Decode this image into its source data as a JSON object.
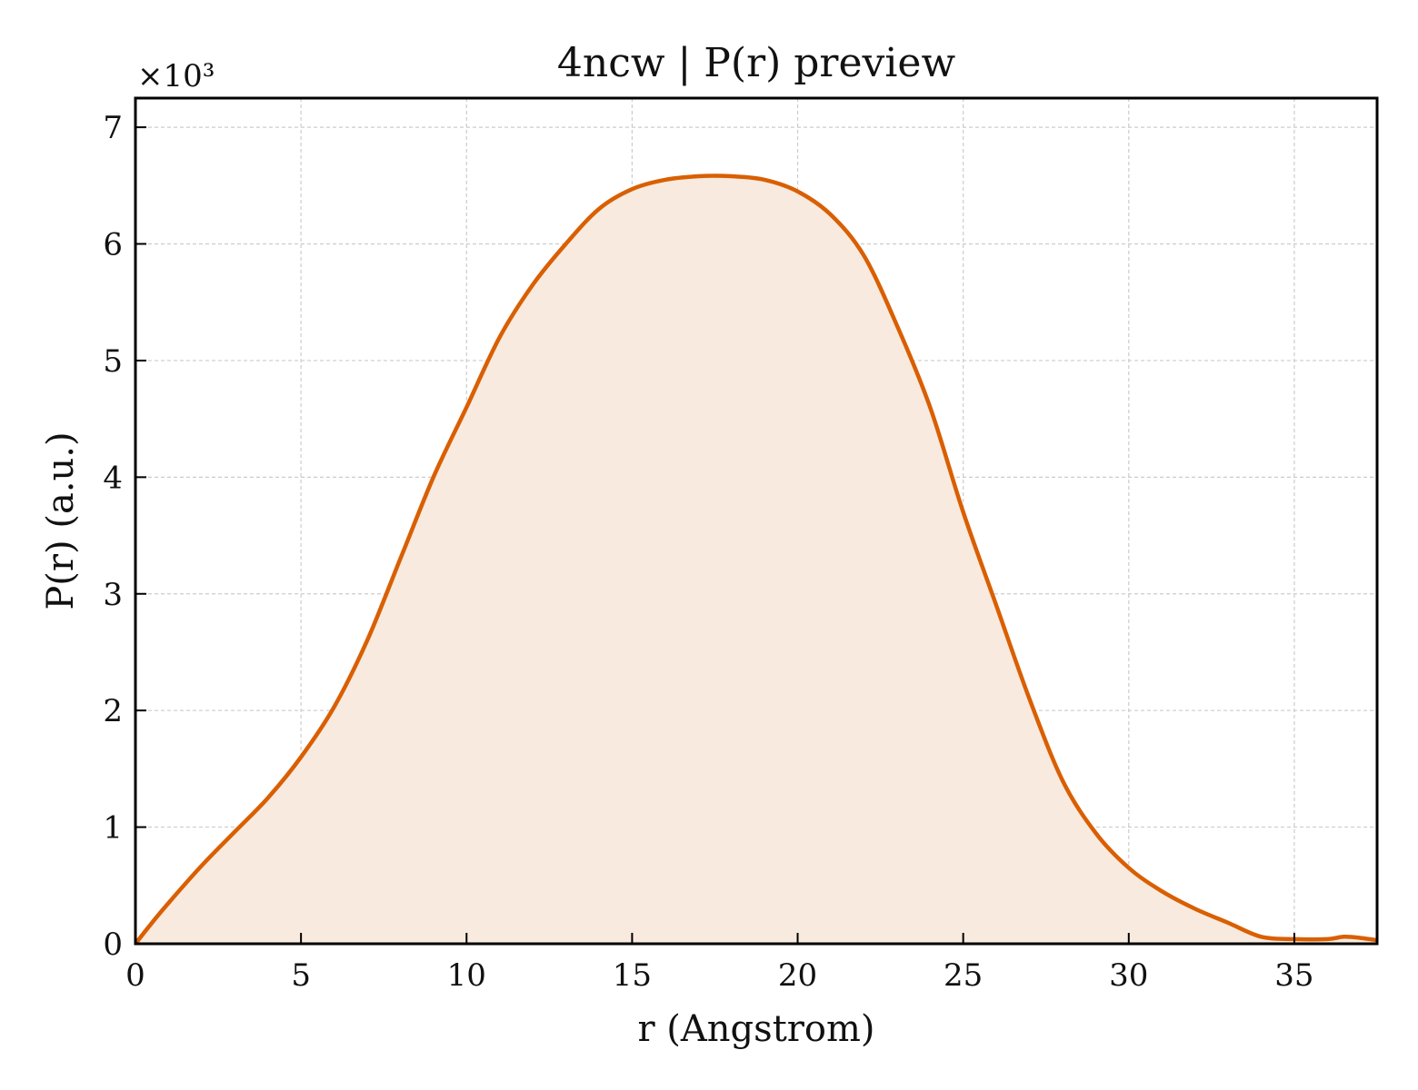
{
  "chart_data": {
    "type": "area",
    "title": "4ncw | P(r) preview",
    "xlabel": "r (Angstrom)",
    "ylabel": "P(r) (a.u.)",
    "y_multiplier": "×10³",
    "xlim": [
      0,
      37.5
    ],
    "ylim": [
      0,
      7.25
    ],
    "x_ticks": [
      0,
      5,
      10,
      15,
      20,
      25,
      30,
      35
    ],
    "y_ticks": [
      0,
      1,
      2,
      3,
      4,
      5,
      6,
      7
    ],
    "grid": true,
    "legend": "none",
    "line_color": "#d95f02",
    "fill_color": "#f8eadf",
    "series": [
      {
        "x": [
          0,
          0.5,
          1,
          2,
          3,
          4,
          5,
          6,
          7,
          8,
          9,
          10,
          11,
          12,
          13,
          14,
          15,
          16,
          17,
          18,
          19,
          20,
          21,
          22,
          23,
          24,
          25,
          26,
          27,
          28,
          29,
          30,
          31,
          32,
          33,
          34,
          35,
          36,
          36.5,
          37,
          37.5
        ],
        "y": [
          0,
          0.18,
          0.35,
          0.67,
          0.96,
          1.25,
          1.6,
          2.03,
          2.6,
          3.3,
          4.0,
          4.6,
          5.2,
          5.65,
          6.0,
          6.3,
          6.47,
          6.55,
          6.58,
          6.58,
          6.55,
          6.45,
          6.25,
          5.9,
          5.3,
          4.6,
          3.7,
          2.9,
          2.1,
          1.4,
          0.95,
          0.65,
          0.45,
          0.3,
          0.18,
          0.06,
          0.04,
          0.04,
          0.06,
          0.05,
          0.03
        ]
      }
    ]
  }
}
